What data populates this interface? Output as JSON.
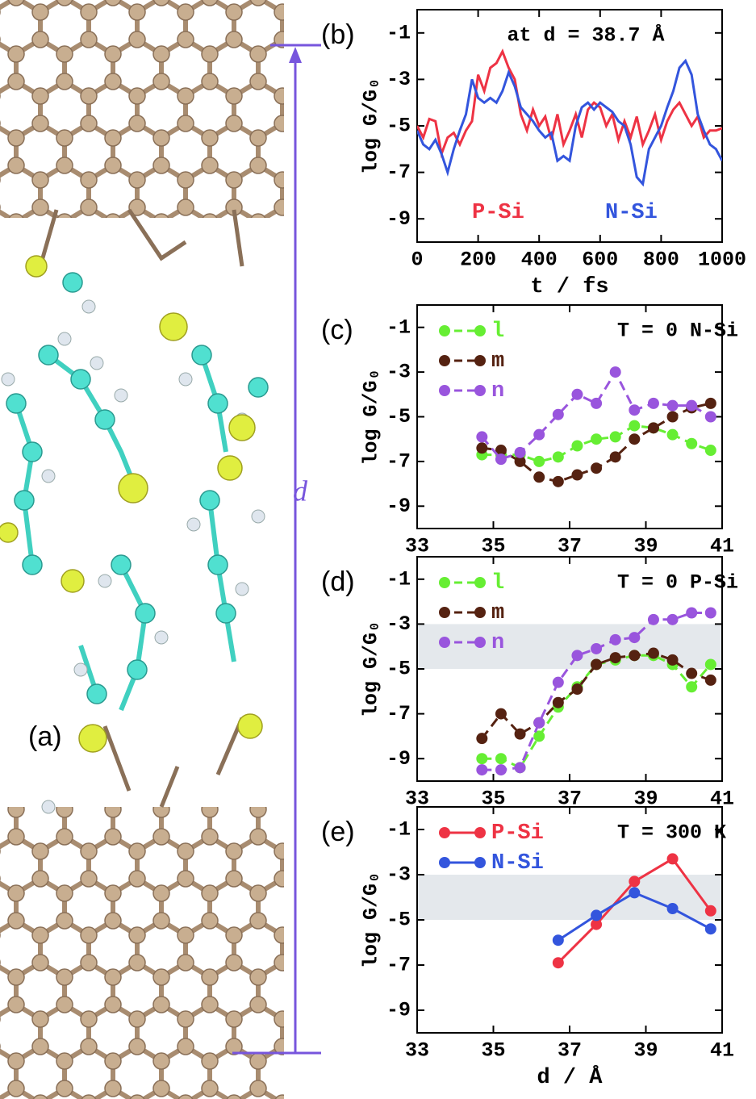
{
  "panel_a": {
    "label": "(a)",
    "distance_label": "d"
  },
  "chart_data": [
    {
      "type": "line",
      "panel": "(b)",
      "annotation": "at d = 38.7 Å",
      "xlabel": "t / fs",
      "ylabel": "log G/G₀",
      "xlim": [
        0,
        1000
      ],
      "ylim": [
        -10,
        0
      ],
      "xticks": [
        0,
        200,
        400,
        600,
        800,
        1000
      ],
      "yticks": [
        -9,
        -7,
        -5,
        -3,
        -1
      ],
      "dash": false,
      "markers": false,
      "x": [
        0,
        20,
        40,
        60,
        80,
        100,
        120,
        140,
        160,
        180,
        200,
        220,
        240,
        260,
        280,
        300,
        320,
        340,
        360,
        380,
        400,
        420,
        440,
        460,
        480,
        500,
        520,
        540,
        560,
        580,
        600,
        620,
        640,
        660,
        680,
        700,
        720,
        740,
        760,
        780,
        800,
        820,
        840,
        860,
        880,
        900,
        920,
        940,
        960,
        980,
        1000
      ],
      "series": [
        {
          "name": "P-Si",
          "color": "#ee3344",
          "values": [
            -5,
            -5.5,
            -4.7,
            -4.8,
            -6.2,
            -5.5,
            -5.3,
            -5.8,
            -5.2,
            -4.8,
            -2.8,
            -3.5,
            -2.5,
            -2.3,
            -1.8,
            -2.5,
            -3.0,
            -4.5,
            -5.2,
            -4.3,
            -5.0,
            -4.6,
            -5.6,
            -4.5,
            -5.8,
            -5.2,
            -4.5,
            -5.5,
            -4.3,
            -4.0,
            -4.2,
            -5.0,
            -4.5,
            -5.6,
            -4.8,
            -5.5,
            -4.6,
            -5.8,
            -5.2,
            -4.5,
            -5.6,
            -4.8,
            -4.3,
            -4.0,
            -4.5,
            -5.0,
            -4.6,
            -5.5,
            -5.2,
            -5.2,
            -5.1
          ]
        },
        {
          "name": "N-Si",
          "color": "#3355dd",
          "values": [
            -5.2,
            -5.8,
            -6.0,
            -5.6,
            -6.2,
            -7.0,
            -6.0,
            -5.2,
            -4.5,
            -3.0,
            -3.8,
            -4.0,
            -3.8,
            -4.0,
            -3.5,
            -2.7,
            -3.3,
            -4.2,
            -4.5,
            -4.8,
            -5.2,
            -5.5,
            -5.3,
            -6.5,
            -6.3,
            -6.5,
            -5.0,
            -4.2,
            -4.0,
            -4.3,
            -4.0,
            -4.2,
            -4.4,
            -4.8,
            -5.0,
            -5.8,
            -7.2,
            -7.5,
            -6.0,
            -5.5,
            -5.0,
            -4.2,
            -3.5,
            -2.5,
            -2.2,
            -2.8,
            -4.5,
            -5.2,
            -5.8,
            -6.0,
            -6.5
          ]
        }
      ]
    },
    {
      "type": "line",
      "panel": "(c)",
      "annotation": "T = 0 N-Si",
      "ylabel": "log G/G₀",
      "xlim": [
        33,
        41
      ],
      "ylim": [
        -10,
        0
      ],
      "xticks": [
        33,
        35,
        37,
        39,
        41
      ],
      "yticks": [
        -9,
        -7,
        -5,
        -3,
        -1
      ],
      "dash": true,
      "markers": true,
      "x": [
        34.7,
        35.2,
        35.7,
        36.2,
        36.7,
        37.2,
        37.7,
        38.2,
        38.7,
        39.2,
        39.7,
        40.2,
        40.7
      ],
      "series": [
        {
          "name": "l",
          "color": "#66ee33",
          "values": [
            -6.7,
            -6.7,
            -6.7,
            -7.0,
            -6.8,
            -6.3,
            -6.0,
            -5.9,
            -5.4,
            -5.5,
            -5.8,
            -6.2,
            -6.5
          ]
        },
        {
          "name": "m",
          "color": "#552211",
          "values": [
            -6.4,
            -6.5,
            -7.0,
            -7.7,
            -7.9,
            -7.6,
            -7.3,
            -6.8,
            -6.0,
            -5.5,
            -5.0,
            -4.6,
            -4.4
          ]
        },
        {
          "name": "n",
          "color": "#9955dd",
          "values": [
            -5.9,
            -6.9,
            -6.6,
            -5.8,
            -4.9,
            -4.0,
            -4.4,
            -3.0,
            -4.7,
            -4.4,
            -4.5,
            -4.5,
            -5.0
          ]
        }
      ]
    },
    {
      "type": "line",
      "panel": "(d)",
      "annotation": "T = 0 P-Si",
      "ylabel": "log G/G₀",
      "xlim": [
        33,
        41
      ],
      "ylim": [
        -10,
        0
      ],
      "xticks": [
        33,
        35,
        37,
        39,
        41
      ],
      "yticks": [
        -9,
        -7,
        -5,
        -3,
        -1
      ],
      "dash": true,
      "markers": true,
      "band": [
        -5,
        -3
      ],
      "x": [
        34.7,
        35.2,
        35.7,
        36.2,
        36.7,
        37.2,
        37.7,
        38.2,
        38.7,
        39.2,
        39.7,
        40.2,
        40.7
      ],
      "series": [
        {
          "name": "l",
          "color": "#66ee33",
          "values": [
            -9.0,
            -9.0,
            -9.4,
            -8.0,
            -6.7,
            -5.8,
            -4.8,
            -4.6,
            -4.4,
            -4.4,
            -4.8,
            -5.8,
            -4.8
          ]
        },
        {
          "name": "m",
          "color": "#552211",
          "values": [
            -8.1,
            -7.0,
            -7.9,
            -7.4,
            -6.5,
            -5.9,
            -4.8,
            -4.5,
            -4.4,
            -4.3,
            -4.6,
            -5.2,
            -5.5
          ]
        },
        {
          "name": "n",
          "color": "#9955dd",
          "values": [
            -9.5,
            -9.5,
            -9.4,
            -7.4,
            -5.6,
            -4.4,
            -4.1,
            -3.7,
            -3.6,
            -2.8,
            -2.8,
            -2.5,
            -2.5
          ]
        }
      ]
    },
    {
      "type": "line",
      "panel": "(e)",
      "annotation": "T = 300 K",
      "xlabel": "d / Å",
      "ylabel": "log G/G₀",
      "xlim": [
        33,
        41
      ],
      "ylim": [
        -10,
        0
      ],
      "xticks": [
        33,
        35,
        37,
        39,
        41
      ],
      "yticks": [
        -9,
        -7,
        -5,
        -3,
        -1
      ],
      "dash": false,
      "markers": true,
      "band": [
        -5,
        -3
      ],
      "x": [
        36.7,
        37.7,
        38.7,
        39.7,
        40.7
      ],
      "series": [
        {
          "name": "P-Si",
          "color": "#ee3344",
          "values": [
            -6.9,
            -5.2,
            -3.3,
            -2.3,
            -4.6
          ]
        },
        {
          "name": "N-Si",
          "color": "#3355dd",
          "values": [
            -5.9,
            -4.8,
            -3.8,
            -4.5,
            -5.4
          ]
        }
      ]
    }
  ]
}
